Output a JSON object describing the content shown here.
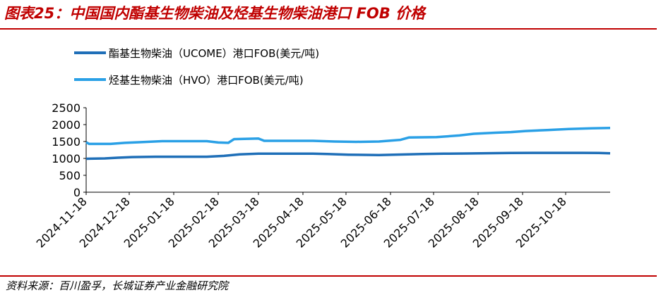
{
  "header": {
    "title": "图表25：中国国内酯基生物柴油及烃基生物柴油港口 FOB 价格"
  },
  "footer": {
    "source": "资料来源：百川盈孚，长城证券产业金融研究院"
  },
  "colors": {
    "title_red": "#c00000",
    "series_ucome": "#1f6fb8",
    "series_hvo": "#2aa0e6",
    "axis": "#000000"
  },
  "chart_data": {
    "type": "line",
    "title": "",
    "xlabel": "",
    "ylabel": "",
    "ylim": [
      0,
      2500
    ],
    "yticks": [
      0,
      500,
      1000,
      1500,
      2000,
      2500
    ],
    "grid": false,
    "legend_position": "top-left",
    "x_range": [
      "2024-11-18",
      "2025-11-18"
    ],
    "xtick_labels": [
      "2024-11-18",
      "2024-12-18",
      "2025-01-18",
      "2025-02-18",
      "2025-03-18",
      "2025-04-18",
      "2025-05-18",
      "2025-06-18",
      "2025-07-18",
      "2025-08-18",
      "2025-09-18",
      "2025-10-18"
    ],
    "series": [
      {
        "name": "酯基生物柴油（UCOME）港口FOB(美元/吨)",
        "color": "#1f6fb8",
        "points": [
          [
            "2024-11-18",
            990
          ],
          [
            "2024-12-01",
            1000
          ],
          [
            "2024-12-10",
            1020
          ],
          [
            "2024-12-20",
            1040
          ],
          [
            "2025-01-05",
            1050
          ],
          [
            "2025-01-25",
            1050
          ],
          [
            "2025-02-10",
            1050
          ],
          [
            "2025-02-22",
            1075
          ],
          [
            "2025-03-05",
            1120
          ],
          [
            "2025-03-18",
            1140
          ],
          [
            "2025-04-10",
            1140
          ],
          [
            "2025-04-25",
            1140
          ],
          [
            "2025-05-05",
            1130
          ],
          [
            "2025-05-20",
            1110
          ],
          [
            "2025-06-10",
            1100
          ],
          [
            "2025-06-25",
            1115
          ],
          [
            "2025-07-10",
            1130
          ],
          [
            "2025-07-25",
            1140
          ],
          [
            "2025-08-10",
            1145
          ],
          [
            "2025-08-25",
            1155
          ],
          [
            "2025-09-10",
            1160
          ],
          [
            "2025-09-25",
            1165
          ],
          [
            "2025-10-10",
            1165
          ],
          [
            "2025-10-30",
            1165
          ],
          [
            "2025-11-10",
            1160
          ],
          [
            "2025-11-18",
            1150
          ]
        ]
      },
      {
        "name": "烃基生物柴油（HVO）港口FOB(美元/吨)",
        "color": "#2aa0e6",
        "points": [
          [
            "2024-11-18",
            1480
          ],
          [
            "2024-11-20",
            1430
          ],
          [
            "2024-12-05",
            1430
          ],
          [
            "2024-12-15",
            1460
          ],
          [
            "2024-12-25",
            1480
          ],
          [
            "2025-01-10",
            1510
          ],
          [
            "2025-01-25",
            1510
          ],
          [
            "2025-02-10",
            1510
          ],
          [
            "2025-02-18",
            1470
          ],
          [
            "2025-02-25",
            1460
          ],
          [
            "2025-03-01",
            1570
          ],
          [
            "2025-03-18",
            1590
          ],
          [
            "2025-03-22",
            1520
          ],
          [
            "2025-04-10",
            1520
          ],
          [
            "2025-04-25",
            1520
          ],
          [
            "2025-05-10",
            1500
          ],
          [
            "2025-05-25",
            1490
          ],
          [
            "2025-06-10",
            1500
          ],
          [
            "2025-06-25",
            1550
          ],
          [
            "2025-07-01",
            1620
          ],
          [
            "2025-07-20",
            1630
          ],
          [
            "2025-08-05",
            1680
          ],
          [
            "2025-08-15",
            1730
          ],
          [
            "2025-08-30",
            1760
          ],
          [
            "2025-09-10",
            1780
          ],
          [
            "2025-09-20",
            1810
          ],
          [
            "2025-10-05",
            1840
          ],
          [
            "2025-10-20",
            1870
          ],
          [
            "2025-11-05",
            1890
          ],
          [
            "2025-11-18",
            1900
          ]
        ]
      }
    ]
  }
}
